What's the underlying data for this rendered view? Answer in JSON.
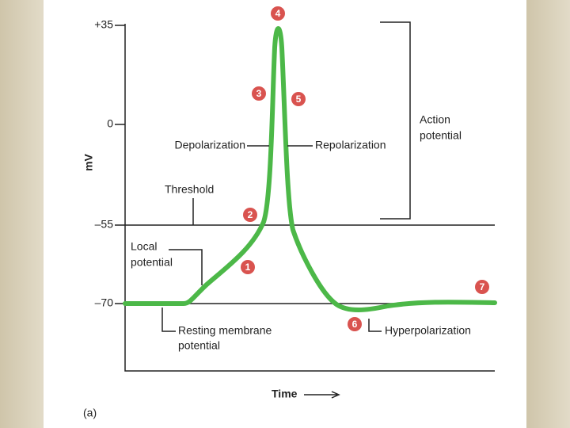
{
  "axis": {
    "y_label": "mV",
    "y_tick_labels": [
      "+35",
      "0",
      "–55",
      "–70"
    ],
    "x_label": "Time"
  },
  "annotations": {
    "depolarization": "Depolarization",
    "repolarization": "Repolarization",
    "threshold": "Threshold",
    "local_potential": [
      "Local",
      "potential"
    ],
    "action_potential": [
      "Action",
      "potential"
    ],
    "resting": [
      "Resting membrane",
      "potential"
    ],
    "hyperpolarization": "Hyperpolarization"
  },
  "markers": [
    "1",
    "2",
    "3",
    "4",
    "5",
    "6",
    "7"
  ],
  "caption": "(a)"
}
